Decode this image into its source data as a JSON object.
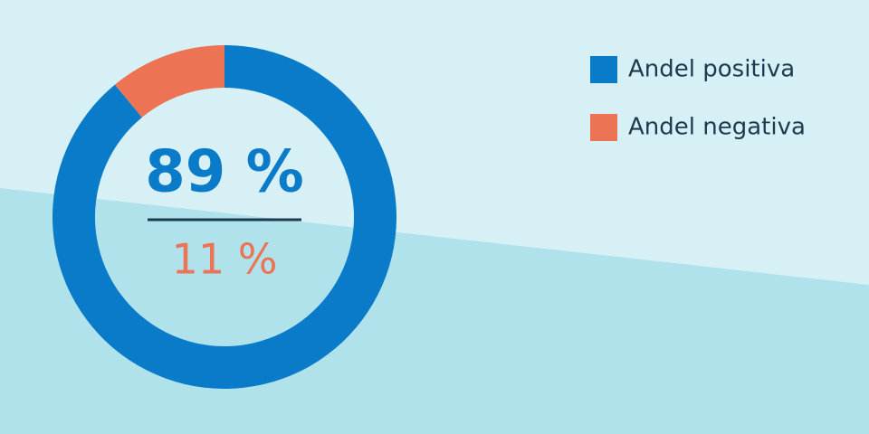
{
  "chart_data": {
    "type": "donut",
    "categories": [
      "Andel positiva",
      "Andel negativa"
    ],
    "values": [
      89,
      11
    ],
    "value_labels": [
      "89 %",
      "11 %"
    ],
    "colors": [
      "#0a7bc8",
      "#ed7355"
    ],
    "legend": "top-right"
  }
}
